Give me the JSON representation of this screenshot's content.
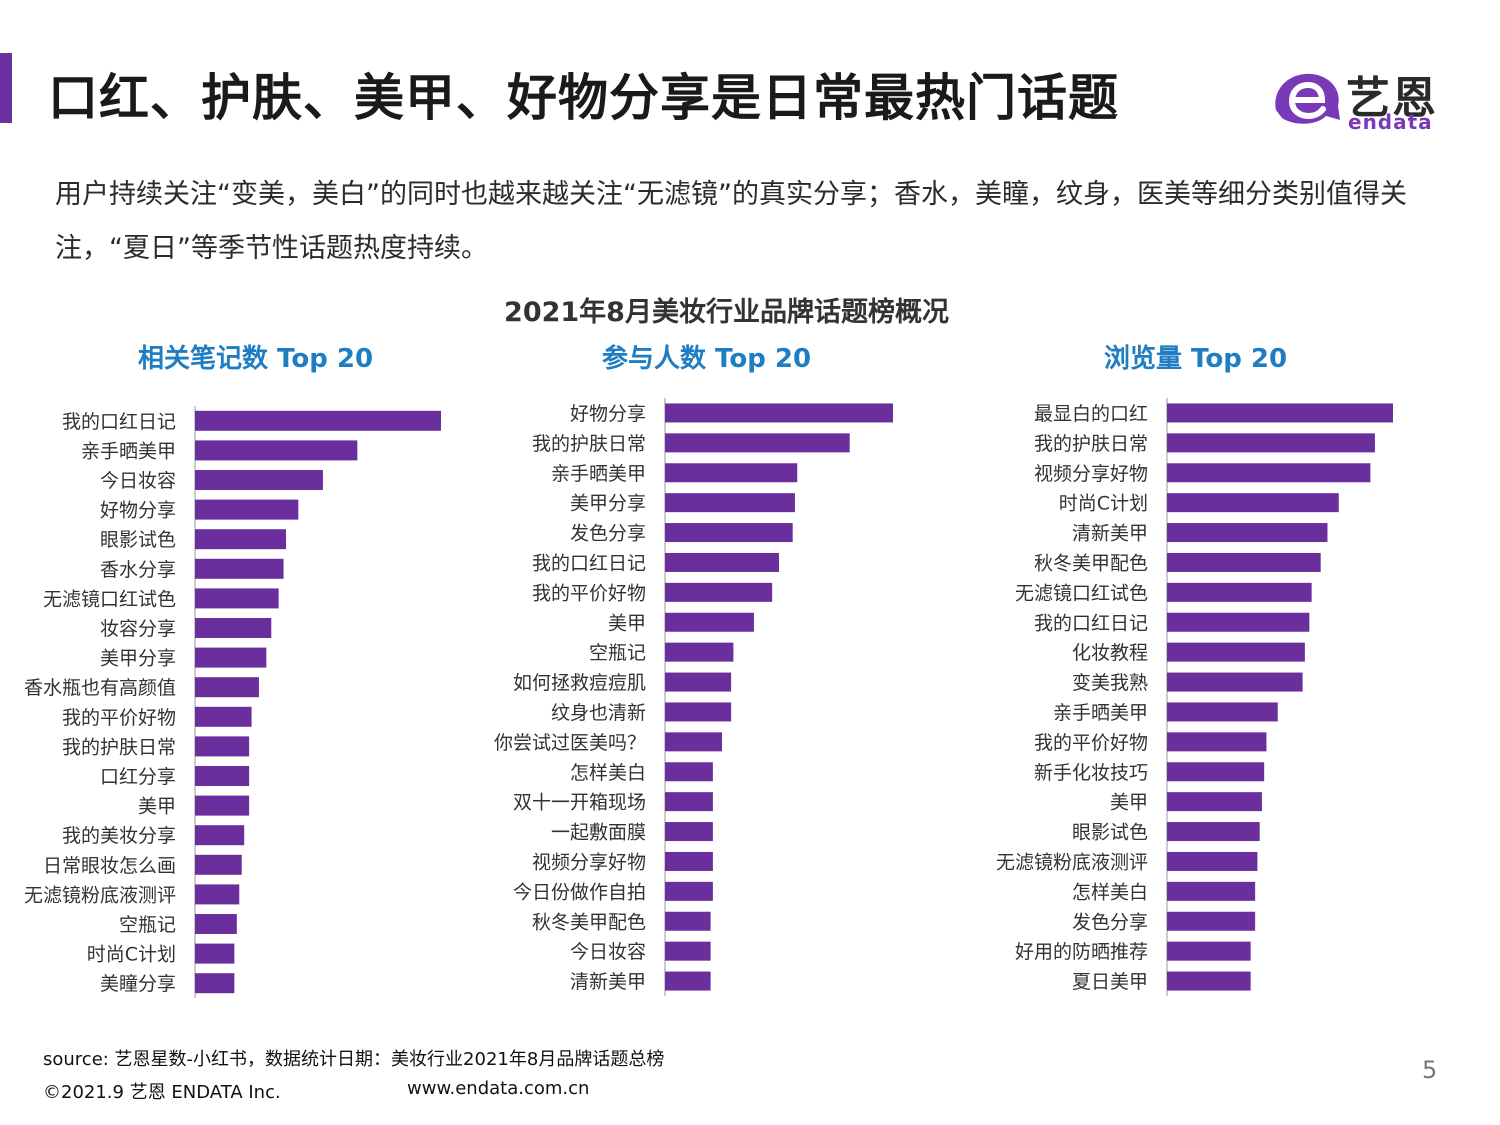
{
  "header": {
    "title": "口红、护肤、美甲、好物分享是日常最热门话题",
    "subtitle": "用户持续关注“变美，美白”的同时也越来越关注“无滤镜”的真实分享；香水，美瞳，纹身，医美等细分类别值得关注，“夏日”等季节性话题热度持续。"
  },
  "logo": {
    "name_cn": "艺恩",
    "name_en": "endata",
    "mark_icon": "endata-e-logo-icon",
    "mark_color": "#7a3ab8"
  },
  "chart_heading": "2021年8月美妆行业品牌话题榜概况",
  "colors": {
    "bar": "#6a2e9d",
    "accent": "#6b2fa0",
    "panel_title": "#1f7dc4",
    "axis": "#bbbbbb"
  },
  "chart_data": [
    {
      "type": "bar",
      "orientation": "horizontal",
      "title": "相关笔记数 Top 20",
      "categories": [
        "我的口红日记",
        "亲手晒美甲",
        "今日妆容",
        "好物分享",
        "眼影试色",
        "香水分享",
        "无滤镜口红试色",
        "妆容分享",
        "美甲分享",
        "香水瓶也有高颜值",
        "我的平价好物",
        "我的护肤日常",
        "口红分享",
        "美甲",
        "我的美妆分享",
        "日常眼妆怎么画",
        "无滤镜粉底液测评",
        "空瓶记",
        "时尚C计划",
        "美瞳分享"
      ],
      "values": [
        100,
        66,
        52,
        42,
        37,
        36,
        34,
        31,
        29,
        26,
        23,
        22,
        22,
        22,
        20,
        19,
        18,
        17,
        16,
        16
      ],
      "xlim": [
        0,
        100
      ],
      "grid": false,
      "legend": "none"
    },
    {
      "type": "bar",
      "orientation": "horizontal",
      "title": "参与人数 Top 20",
      "categories": [
        "好物分享",
        "我的护肤日常",
        "亲手晒美甲",
        "美甲分享",
        "发色分享",
        "我的口红日记",
        "我的平价好物",
        "美甲",
        "空瓶记",
        "如何拯救痘痘肌",
        "纹身也清新",
        "你尝试过医美吗？",
        "怎样美白",
        "双十一开箱现场",
        "一起敷面膜",
        "视频分享好物",
        "今日份做作自拍",
        "秋冬美甲配色",
        "今日妆容",
        "清新美甲"
      ],
      "values": [
        100,
        81,
        58,
        57,
        56,
        50,
        47,
        39,
        30,
        29,
        29,
        25,
        21,
        21,
        21,
        21,
        21,
        20,
        20,
        20
      ],
      "xlim": [
        0,
        100
      ],
      "grid": false,
      "legend": "none"
    },
    {
      "type": "bar",
      "orientation": "horizontal",
      "title": "浏览量 Top 20",
      "categories": [
        "最显白的口红",
        "我的护肤日常",
        "视频分享好物",
        "时尚C计划",
        "清新美甲",
        "秋冬美甲配色",
        "无滤镜口红试色",
        "我的口红日记",
        "化妆教程",
        "变美我熟",
        "亲手晒美甲",
        "我的平价好物",
        "新手化妆技巧",
        "美甲",
        "眼影试色",
        "无滤镜粉底液测评",
        "怎样美白",
        "发色分享",
        "好用的防晒推荐",
        "夏日美甲"
      ],
      "values": [
        100,
        92,
        90,
        76,
        71,
        68,
        64,
        63,
        61,
        60,
        49,
        44,
        43,
        42,
        41,
        40,
        39,
        39,
        37,
        37
      ],
      "xlim": [
        0,
        100
      ],
      "grid": false,
      "legend": "none"
    }
  ],
  "footer": {
    "source": "source: 艺恩星数-小红书，数据统计日期：美妆行业2021年8月品牌话题总榜",
    "copyright": "©2021.9 艺恩 ENDATA Inc.",
    "website": "www.endata.com.cn",
    "page_number": "5"
  }
}
